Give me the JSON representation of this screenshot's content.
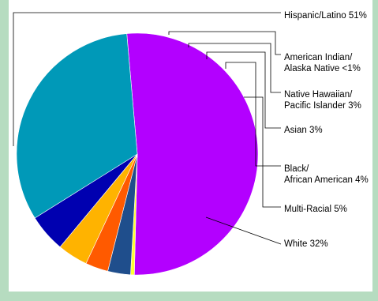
{
  "chart_data": {
    "type": "pie",
    "title": "",
    "slices": [
      {
        "label": [
          "Hispanic/Latino 51%"
        ],
        "value": 51,
        "color": "#b300ff"
      },
      {
        "label": [
          "American Indian/",
          "Alaska Native <1%"
        ],
        "value": 0.5,
        "color": "#ffff33"
      },
      {
        "label": [
          "Native Hawaiian/",
          "Pacific Islander 3%"
        ],
        "value": 3,
        "color": "#1f4e8c"
      },
      {
        "label": [
          "Asian 3%"
        ],
        "value": 3,
        "color": "#ff5a00"
      },
      {
        "label": [
          "Black/",
          "African American 4%"
        ],
        "value": 4,
        "color": "#ffb300"
      },
      {
        "label": [
          "Multi-Racial 5%"
        ],
        "value": 5,
        "color": "#0000b0"
      },
      {
        "label": [
          "White 32%"
        ],
        "value": 32,
        "color": "#0099b8"
      }
    ],
    "legend": "none",
    "labels": "leader-lines-right"
  }
}
